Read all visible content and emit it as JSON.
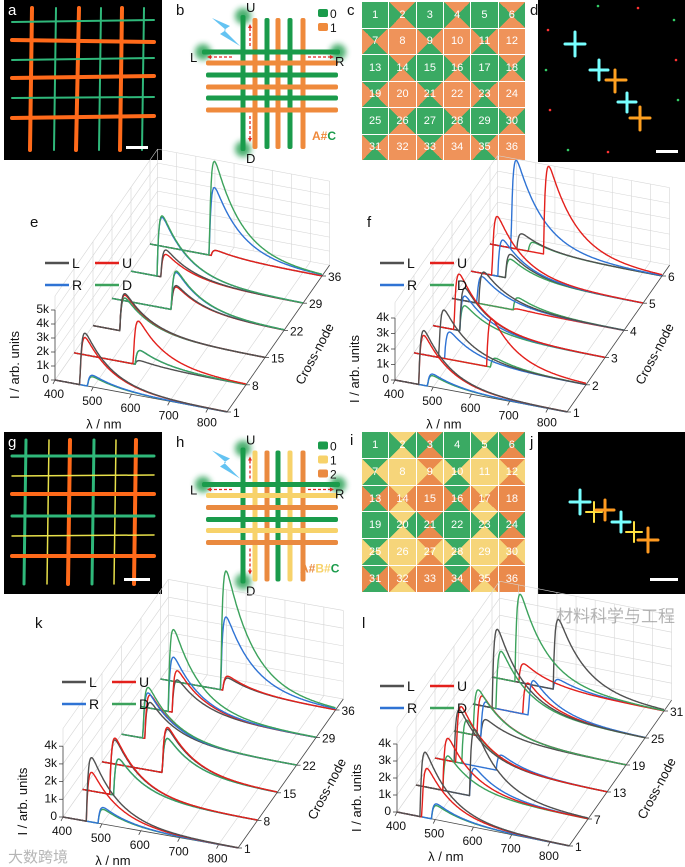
{
  "panel_letters": {
    "a": "a",
    "b": "b",
    "c": "c",
    "d": "d",
    "e": "e",
    "f": "f",
    "g": "g",
    "h": "h",
    "i": "i",
    "j": "j",
    "k": "k",
    "l": "l"
  },
  "diagram_b": {
    "legend": [
      {
        "code": "0",
        "color": "#1a9b4b"
      },
      {
        "code": "1",
        "color": "#ef8a3c"
      }
    ],
    "ports": {
      "U": "U",
      "L": "L",
      "R": "R",
      "D": "D"
    },
    "formula": [
      {
        "text": "A",
        "color": "#ef8a3c"
      },
      {
        "text": "#",
        "color": "#ef8a3c"
      },
      {
        "text": "C",
        "color": "#1a9b4b"
      }
    ],
    "vertical": [
      0,
      1,
      0,
      1,
      0,
      1
    ],
    "horizontal": [
      0,
      1,
      0,
      1,
      0,
      1
    ]
  },
  "diagram_h": {
    "legend": [
      {
        "code": "0",
        "color": "#1a9b4b"
      },
      {
        "code": "1",
        "color": "#f7d26a"
      },
      {
        "code": "2",
        "color": "#ea8a3f"
      }
    ],
    "ports": {
      "U": "U",
      "L": "L",
      "R": "R",
      "D": "D"
    },
    "formula": [
      {
        "text": "A",
        "color": "#ea8a3f"
      },
      {
        "text": "#",
        "color": "#ea8a3f"
      },
      {
        "text": "B",
        "color": "#f7d26a"
      },
      {
        "text": "#",
        "color": "#f7d26a"
      },
      {
        "text": "C",
        "color": "#1a9b4b"
      }
    ],
    "vertical": [
      0,
      1,
      2,
      0,
      1,
      2
    ],
    "horizontal": [
      0,
      1,
      2,
      0,
      1,
      2
    ]
  },
  "grid_c": {
    "palette": [
      "#3aaa63",
      "#ef935a"
    ],
    "cols": [
      0,
      1,
      0,
      1,
      0,
      1
    ],
    "rows": [
      0,
      1,
      0,
      1,
      0,
      1
    ],
    "numbers": [
      "1",
      "2",
      "3",
      "4",
      "5",
      "6",
      "7",
      "8",
      "9",
      "10",
      "11",
      "12",
      "13",
      "14",
      "15",
      "16",
      "17",
      "18",
      "19",
      "20",
      "21",
      "22",
      "23",
      "24",
      "25",
      "26",
      "27",
      "28",
      "29",
      "30",
      "31",
      "32",
      "33",
      "34",
      "35",
      "36"
    ]
  },
  "grid_i": {
    "palette": [
      "#3aaa63",
      "#f6d57a",
      "#ea8a4c"
    ],
    "cols": [
      0,
      1,
      2,
      0,
      1,
      2
    ],
    "rows": [
      0,
      1,
      2,
      0,
      1,
      2
    ],
    "numbers": [
      "1",
      "2",
      "3",
      "4",
      "5",
      "6",
      "7",
      "8",
      "9",
      "10",
      "11",
      "12",
      "13",
      "14",
      "15",
      "16",
      "17",
      "18",
      "19",
      "20",
      "21",
      "22",
      "23",
      "24",
      "25",
      "26",
      "27",
      "28",
      "29",
      "30",
      "31",
      "32",
      "33",
      "34",
      "35",
      "36"
    ]
  },
  "colors": {
    "L": "#505050",
    "U": "#e3201c",
    "R": "#2f73d4",
    "D": "#3ca25c"
  },
  "chart_data": [
    {
      "id": "e",
      "type": "line",
      "title": "",
      "xlabel": "λ / nm",
      "ylabel": "I / arb. units",
      "zlabel": "Cross-node",
      "xlim": [
        400,
        850
      ],
      "xticks": [
        "400",
        "500",
        "600",
        "700",
        "800"
      ],
      "xtick_values": [
        400,
        500,
        600,
        700,
        800
      ],
      "ylim": [
        0,
        5000
      ],
      "yticks": [
        "0",
        "1k",
        "2k",
        "3k",
        "4k",
        "5k"
      ],
      "nodes": [
        "1",
        "8",
        "15",
        "22",
        "29",
        "36"
      ],
      "legend": [
        "L",
        "U",
        "R",
        "D"
      ],
      "peaks": [
        [
          [
            "L",
            465,
            3600
          ],
          [
            "U",
            465,
            3300
          ],
          [
            "R",
            485,
            800
          ],
          [
            "D",
            485,
            700
          ]
        ],
        [
          [
            "U",
            555,
            3000
          ],
          [
            "L",
            560,
            300
          ],
          [
            "R",
            560,
            1000
          ],
          [
            "D",
            560,
            1000
          ]
        ],
        [
          [
            "L",
            470,
            2600
          ],
          [
            "U",
            470,
            2500
          ],
          [
            "R",
            470,
            2300
          ],
          [
            "D",
            470,
            2300
          ]
        ],
        [
          [
            "D",
            555,
            2700
          ],
          [
            "R",
            555,
            2600
          ],
          [
            "L",
            555,
            1700
          ],
          [
            "U",
            555,
            1600
          ]
        ],
        [
          [
            "D",
            468,
            4200
          ],
          [
            "R",
            468,
            4100
          ],
          [
            "L",
            478,
            1900
          ],
          [
            "U",
            478,
            1600
          ]
        ],
        [
          [
            "D",
            555,
            6500
          ],
          [
            "R",
            555,
            4700
          ],
          [
            "L",
            560,
            400
          ],
          [
            "U",
            560,
            400
          ]
        ]
      ]
    },
    {
      "id": "f",
      "type": "line",
      "title": "",
      "xlabel": "λ / nm",
      "ylabel": "I / arb. units",
      "zlabel": "Cross-node",
      "xlim": [
        400,
        850
      ],
      "xticks": [
        "400",
        "500",
        "600",
        "700",
        "800"
      ],
      "xtick_values": [
        400,
        500,
        600,
        700,
        800
      ],
      "ylim": [
        0,
        4000
      ],
      "yticks": [
        "0",
        "1k",
        "2k",
        "3k",
        "4k"
      ],
      "nodes": [
        "1",
        "2",
        "3",
        "4",
        "5",
        "6"
      ],
      "legend": [
        "L",
        "U",
        "R",
        "D"
      ],
      "peaks": [
        [
          [
            "L",
            462,
            3400
          ],
          [
            "U",
            462,
            3100
          ],
          [
            "R",
            485,
            800
          ],
          [
            "D",
            485,
            700
          ]
        ],
        [
          [
            "L",
            465,
            3000
          ],
          [
            "R",
            480,
            1700
          ],
          [
            "U",
            590,
            3000
          ],
          [
            "D",
            600,
            600
          ]
        ],
        [
          [
            "L",
            470,
            2700
          ],
          [
            "R",
            470,
            2200
          ],
          [
            "D",
            470,
            1600
          ],
          [
            "U",
            455,
            3500
          ]
        ],
        [
          [
            "L",
            470,
            2000
          ],
          [
            "R",
            465,
            1700
          ],
          [
            "D",
            560,
            800
          ],
          [
            "U",
            560,
            100
          ]
        ],
        [
          [
            "U",
            455,
            3700
          ],
          [
            "R",
            470,
            2300
          ],
          [
            "L",
            490,
            1500
          ],
          [
            "D",
            490,
            1200
          ]
        ],
        [
          [
            "R",
            455,
            5500
          ],
          [
            "U",
            540,
            5500
          ],
          [
            "L",
            470,
            1000
          ],
          [
            "D",
            500,
            600
          ]
        ]
      ]
    },
    {
      "id": "k",
      "type": "line",
      "title": "",
      "xlabel": "λ / nm",
      "ylabel": "I / arb. units",
      "zlabel": "Cross-node",
      "xlim": [
        400,
        850
      ],
      "xticks": [
        "400",
        "500",
        "600",
        "700",
        "800"
      ],
      "xtick_values": [
        400,
        500,
        600,
        700,
        800
      ],
      "ylim": [
        0,
        4000
      ],
      "yticks": [
        "0",
        "1k",
        "2k",
        "3k",
        "4k"
      ],
      "nodes": [
        "1",
        "8",
        "15",
        "22",
        "29",
        "36"
      ],
      "legend": [
        "L",
        "U",
        "R",
        "D"
      ],
      "peaks": [
        [
          [
            "L",
            460,
            3500
          ],
          [
            "U",
            460,
            2700
          ],
          [
            "R",
            490,
            900
          ],
          [
            "D",
            490,
            800
          ]
        ],
        [
          [
            "U",
            470,
            3100
          ],
          [
            "L",
            470,
            3000
          ],
          [
            "R",
            480,
            2000
          ],
          [
            "D",
            480,
            2000
          ]
        ],
        [
          [
            "U",
            555,
            2500
          ],
          [
            "L",
            555,
            2400
          ],
          [
            "R",
            555,
            1900
          ],
          [
            "D",
            555,
            1900
          ]
        ],
        [
          [
            "D",
            455,
            2800
          ],
          [
            "R",
            455,
            2500
          ],
          [
            "U",
            460,
            2400
          ],
          [
            "L",
            460,
            2000
          ]
        ],
        [
          [
            "D",
            470,
            4500
          ],
          [
            "R",
            470,
            3000
          ],
          [
            "U",
            480,
            2300
          ],
          [
            "L",
            480,
            1800
          ]
        ],
        [
          [
            "D",
            555,
            6500
          ],
          [
            "R",
            555,
            4000
          ],
          [
            "U",
            560,
            800
          ],
          [
            "L",
            560,
            700
          ]
        ]
      ]
    },
    {
      "id": "l",
      "type": "line",
      "title": "",
      "xlabel": "λ / nm",
      "ylabel": "I / arb. units",
      "zlabel": "Cross-node",
      "xlim": [
        400,
        850
      ],
      "xticks": [
        "400",
        "500",
        "600",
        "700",
        "800"
      ],
      "xtick_values": [
        400,
        500,
        600,
        700,
        800
      ],
      "ylim": [
        0,
        4000
      ],
      "yticks": [
        "0",
        "1k",
        "2k",
        "3k",
        "4k"
      ],
      "nodes": [
        "1",
        "7",
        "13",
        "19",
        "25",
        "31"
      ],
      "legend": [
        "L",
        "U",
        "R",
        "D"
      ],
      "peaks": [
        [
          [
            "L",
            460,
            3700
          ],
          [
            "U",
            465,
            2800
          ],
          [
            "R",
            490,
            900
          ],
          [
            "D",
            490,
            800
          ]
        ],
        [
          [
            "U",
            470,
            3000
          ],
          [
            "D",
            470,
            2000
          ],
          [
            "L",
            540,
            3800
          ],
          [
            "R",
            540,
            1600
          ]
        ],
        [
          [
            "U",
            455,
            3200
          ],
          [
            "L",
            450,
            3000
          ],
          [
            "D",
            470,
            2500
          ],
          [
            "R",
            560,
            900
          ]
        ],
        [
          [
            "U",
            460,
            2300
          ],
          [
            "R",
            470,
            2000
          ],
          [
            "D",
            450,
            2600
          ],
          [
            "L",
            470,
            1000
          ]
        ],
        [
          [
            "L",
            450,
            4500
          ],
          [
            "D",
            460,
            3300
          ],
          [
            "U",
            530,
            1800
          ],
          [
            "R",
            545,
            2000
          ]
        ],
        [
          [
            "D",
            460,
            5000
          ],
          [
            "L",
            560,
            4000
          ],
          [
            "U",
            470,
            1100
          ],
          [
            "R",
            560,
            600
          ]
        ]
      ]
    }
  ],
  "watermarks": {
    "left": "大数跨境",
    "right": "材料科学与工程"
  }
}
